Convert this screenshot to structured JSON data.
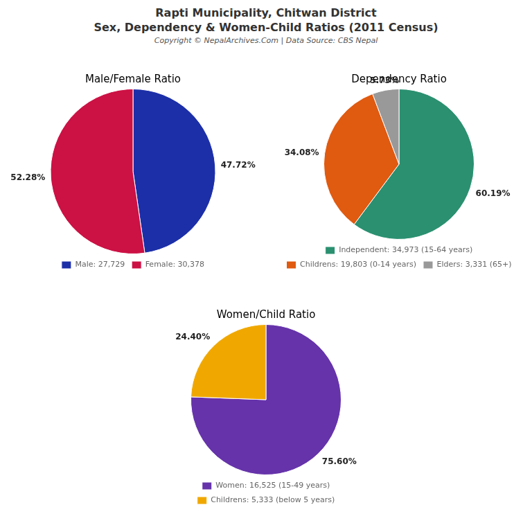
{
  "title": "Rapti Municipality, Chitwan District",
  "subtitle": "Sex, Dependency & Women-Child Ratios (2011 Census)",
  "annotations": [
    "Copyright © NepalArchives.Com | Data Source: CBS Nepal"
  ],
  "chart_data": [
    {
      "type": "pie",
      "title": "Male/Female Ratio",
      "categories": [
        "Male: 27,729",
        "Female: 30,378"
      ],
      "values": [
        47.72,
        52.28
      ],
      "value_labels": [
        "47.72%",
        "52.28%"
      ],
      "colors": [
        "#1c2fa8",
        "#cc1144"
      ],
      "data_labels": true,
      "legend": "bottom"
    },
    {
      "type": "pie",
      "title": "Dependency Ratio",
      "categories": [
        "Independent: 34,973 (15-64 years)",
        "Childrens: 19,803 (0-14 years)",
        "Elders: 3,331 (65+)"
      ],
      "values": [
        60.19,
        34.08,
        5.73
      ],
      "value_labels": [
        "60.19%",
        "34.08%",
        "5.73%"
      ],
      "colors": [
        "#2a9070",
        "#e05a10",
        "#999999"
      ],
      "data_labels": true,
      "legend": "bottom"
    },
    {
      "type": "pie",
      "title": "Women/Child Ratio",
      "categories": [
        "Women: 16,525 (15-49 years)",
        "Childrens: 5,333 (below 5 years)"
      ],
      "values": [
        75.6,
        24.4
      ],
      "value_labels": [
        "75.60%",
        "24.40%"
      ],
      "colors": [
        "#6633aa",
        "#f0a800"
      ],
      "data_labels": true,
      "legend": "bottom"
    }
  ]
}
